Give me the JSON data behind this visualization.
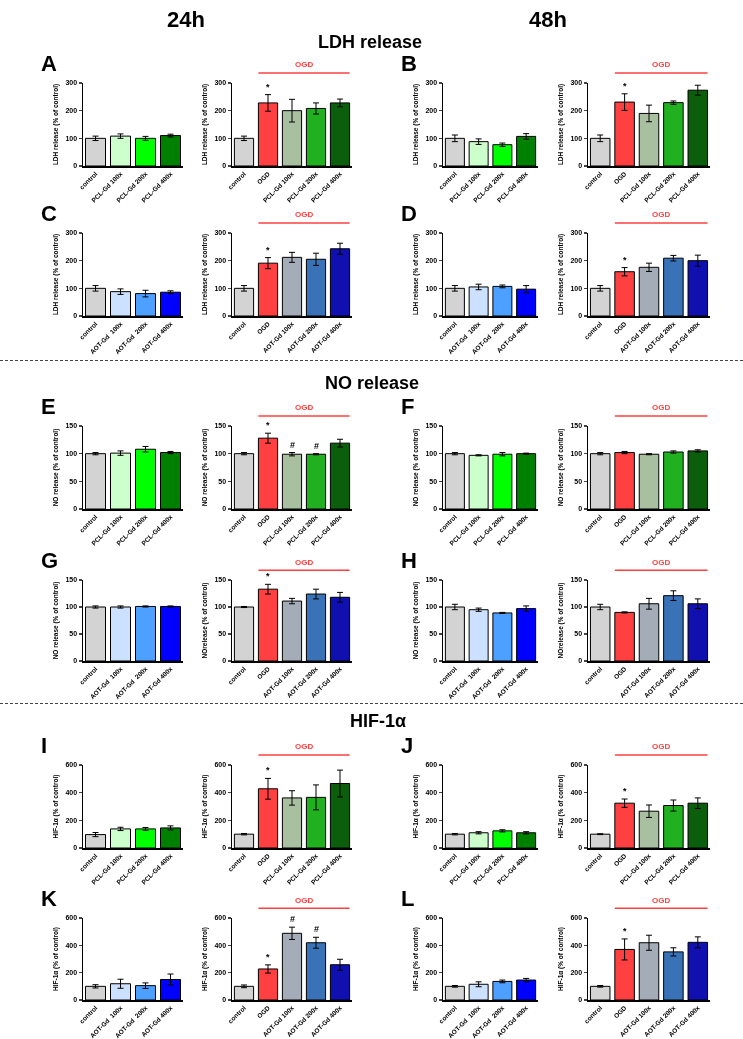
{
  "chart_data": [
    {
      "type": "bar",
      "title": "A",
      "annotations": [
        "24h",
        "LDH release"
      ],
      "ylabel": "LDH release (% of control)",
      "categories": [
        "control",
        "PCL-Gd 100x",
        "PCL-Gd 200x",
        "PCL-Gd 400x"
      ],
      "colors": [
        "#d3d3d3",
        "#ccffcc",
        "#00ff00",
        "#008000"
      ],
      "values": [
        100,
        108,
        100,
        110
      ],
      "errors": [
        8,
        8,
        7,
        5
      ],
      "ylim": [
        0,
        300
      ],
      "yticks": [
        0,
        100,
        200,
        300
      ]
    },
    {
      "type": "bar",
      "annotations": [
        "OGD"
      ],
      "ylabel": "LDH release (% of control)",
      "categories": [
        "control",
        "OGD",
        "PCL-Gd 100x",
        "PCL-Gd 200x",
        "PCL-Gd 400x"
      ],
      "colors": [
        "#d3d3d3",
        "#ff4040",
        "#a9c0a0",
        "#20b020",
        "#0b5e0b"
      ],
      "values": [
        100,
        228,
        200,
        208,
        228
      ],
      "errors": [
        8,
        30,
        41,
        20,
        14
      ],
      "value_labels": [
        null,
        "*",
        null,
        null,
        null
      ],
      "ylim": [
        0,
        300
      ],
      "yticks": [
        0,
        100,
        200,
        300
      ]
    },
    {
      "type": "bar",
      "title": "B",
      "annotations": [
        "48h"
      ],
      "ylabel": "LDH release (% of control)",
      "categories": [
        "control",
        "PCL-Gd 100x",
        "PCL-Gd 200x",
        "PCL-Gd 400x"
      ],
      "colors": [
        "#d3d3d3",
        "#ccffcc",
        "#00ff00",
        "#008000"
      ],
      "values": [
        100,
        88,
        77,
        107
      ],
      "errors": [
        12,
        10,
        6,
        10
      ],
      "ylim": [
        0,
        300
      ],
      "yticks": [
        0,
        100,
        200,
        300
      ]
    },
    {
      "type": "bar",
      "annotations": [
        "OGD"
      ],
      "ylabel": "LDH release (% of control)",
      "categories": [
        "control",
        "OGD",
        "PCL-Gd 100x",
        "PCL-Gd 200x",
        "PCL-Gd 400x"
      ],
      "colors": [
        "#d3d3d3",
        "#ff4040",
        "#a9c0a0",
        "#20b020",
        "#0b5e0b"
      ],
      "values": [
        100,
        231,
        190,
        229,
        274
      ],
      "errors": [
        12,
        30,
        30,
        6,
        18
      ],
      "value_labels": [
        null,
        "*",
        null,
        null,
        null
      ],
      "ylim": [
        0,
        300
      ],
      "yticks": [
        0,
        100,
        200,
        300
      ]
    },
    {
      "type": "bar",
      "title": "C",
      "ylabel": "LDH release (% of control)",
      "categories": [
        "control",
        "AOT-Gd  100x",
        "AOT-Gd  200x",
        "AOT-Gd 400x"
      ],
      "colors": [
        "#d3d3d3",
        "#cce0ff",
        "#4da0ff",
        "#0000ff"
      ],
      "values": [
        100,
        88,
        81,
        86
      ],
      "errors": [
        10,
        10,
        12,
        5
      ],
      "ylim": [
        0,
        300
      ],
      "yticks": [
        0,
        100,
        200,
        300
      ]
    },
    {
      "type": "bar",
      "annotations": [
        "OGD"
      ],
      "ylabel": "LDH release (% of control)",
      "categories": [
        "control",
        "OGD",
        "AOT-Gd 100x",
        "AOT-Gd 200x",
        "AOT-Gd 400x"
      ],
      "colors": [
        "#d3d3d3",
        "#ff4040",
        "#a4acb8",
        "#3a72b8",
        "#1010b0"
      ],
      "values": [
        100,
        191,
        212,
        205,
        243
      ],
      "errors": [
        10,
        20,
        18,
        22,
        20
      ],
      "value_labels": [
        null,
        "*",
        null,
        null,
        null
      ],
      "ylim": [
        0,
        300
      ],
      "yticks": [
        0,
        100,
        200,
        300
      ]
    },
    {
      "type": "bar",
      "title": "D",
      "ylabel": "LDH release (% of control)",
      "categories": [
        "control",
        "AOT-Gd  100x",
        "AOT-Gd  200x",
        "AOT-Gd 400x"
      ],
      "colors": [
        "#d3d3d3",
        "#cce0ff",
        "#4da0ff",
        "#0000ff"
      ],
      "values": [
        100,
        105,
        107,
        97
      ],
      "errors": [
        10,
        10,
        5,
        13
      ],
      "ylim": [
        0,
        300
      ],
      "yticks": [
        0,
        100,
        200,
        300
      ]
    },
    {
      "type": "bar",
      "annotations": [
        "OGD"
      ],
      "ylabel": "LDH release (% of control)",
      "categories": [
        "control",
        "OGD",
        "AOT-Gd 100x",
        "AOT-Gd 200x",
        "AOT-Gd 400x"
      ],
      "colors": [
        "#d3d3d3",
        "#ff4040",
        "#a4acb8",
        "#3a72b8",
        "#1010b0"
      ],
      "values": [
        100,
        160,
        176,
        209,
        200
      ],
      "errors": [
        10,
        15,
        15,
        10,
        20
      ],
      "value_labels": [
        null,
        "*",
        null,
        null,
        null
      ],
      "ylim": [
        0,
        300
      ],
      "yticks": [
        0,
        100,
        200,
        300
      ]
    },
    {
      "type": "bar",
      "title": "E",
      "annotations": [
        "NO release"
      ],
      "ylabel": "NO release (% of control)",
      "categories": [
        "control",
        "PCL-Gd 100x",
        "PCL-Gd 200x",
        "PCL-Gd 400x"
      ],
      "colors": [
        "#d3d3d3",
        "#ccffcc",
        "#00ff00",
        "#008000"
      ],
      "values": [
        100,
        101,
        108,
        102
      ],
      "errors": [
        2,
        4,
        5,
        2
      ],
      "ylim": [
        0,
        150
      ],
      "yticks": [
        0,
        50,
        100,
        150
      ]
    },
    {
      "type": "bar",
      "annotations": [
        "OGD"
      ],
      "ylabel": "NO release (% of control)",
      "categories": [
        "control",
        "OGD",
        "PCL-Gd 100x",
        "PCL-Gd 200x",
        "PCL-Gd 400x"
      ],
      "colors": [
        "#d3d3d3",
        "#ff4040",
        "#a9c0a0",
        "#20b020",
        "#0b5e0b"
      ],
      "values": [
        100,
        128,
        99,
        99,
        119
      ],
      "errors": [
        2,
        9,
        3,
        1,
        7
      ],
      "value_labels": [
        null,
        "*",
        "#",
        "#",
        null
      ],
      "ylim": [
        0,
        150
      ],
      "yticks": [
        0,
        50,
        100,
        150
      ]
    },
    {
      "type": "bar",
      "title": "F",
      "ylabel": "NO release (% of control)",
      "categories": [
        "control",
        "PCL-Gd 100x",
        "PCL-Gd 200x",
        "PCL-Gd 400x"
      ],
      "colors": [
        "#d3d3d3",
        "#ccffcc",
        "#00ff00",
        "#008000"
      ],
      "values": [
        100,
        97,
        99,
        100
      ],
      "errors": [
        2,
        1,
        3,
        1
      ],
      "ylim": [
        0,
        150
      ],
      "yticks": [
        0,
        50,
        100,
        150
      ]
    },
    {
      "type": "bar",
      "annotations": [
        "OGD"
      ],
      "ylabel": "NO release (% of control)",
      "categories": [
        "control",
        "OGD",
        "PCL-Gd 100x",
        "PCL-Gd 200x",
        "PCL-Gd 400x"
      ],
      "colors": [
        "#d3d3d3",
        "#ff4040",
        "#a9c0a0",
        "#20b020",
        "#0b5e0b"
      ],
      "values": [
        100,
        102,
        99,
        103,
        105
      ],
      "errors": [
        2,
        2,
        1,
        2,
        2
      ],
      "ylim": [
        0,
        150
      ],
      "yticks": [
        0,
        50,
        100,
        150
      ]
    },
    {
      "type": "bar",
      "title": "G",
      "ylabel": "NO release (% of control)",
      "categories": [
        "control",
        "AOT-Gd  100x",
        "AOT-Gd  200x",
        "AOT-Gd 400x"
      ],
      "colors": [
        "#d3d3d3",
        "#cce0ff",
        "#4da0ff",
        "#0000ff"
      ],
      "values": [
        100,
        100,
        101,
        101
      ],
      "errors": [
        2,
        2,
        1,
        1
      ],
      "ylim": [
        0,
        150
      ],
      "yticks": [
        0,
        50,
        100,
        150
      ]
    },
    {
      "type": "bar",
      "annotations": [
        "OGD"
      ],
      "ylabel": "NOrelease (% of control)",
      "categories": [
        "control",
        "OGD",
        "AOT-Gd 100x",
        "AOT-Gd 200x",
        "AOT-Gd 400x"
      ],
      "colors": [
        "#d3d3d3",
        "#ff4040",
        "#a4acb8",
        "#3a72b8",
        "#1010b0"
      ],
      "values": [
        100,
        133,
        111,
        124,
        118
      ],
      "errors": [
        1,
        9,
        5,
        9,
        9
      ],
      "value_labels": [
        null,
        "*",
        null,
        null,
        null
      ],
      "ylim": [
        0,
        150
      ],
      "yticks": [
        0,
        50,
        100,
        150
      ]
    },
    {
      "type": "bar",
      "title": "H",
      "ylabel": "NO release (% of control)",
      "categories": [
        "control",
        "AOT-Gd  100x",
        "AOT-Gd  200x",
        "AOT-Gd 400x"
      ],
      "colors": [
        "#d3d3d3",
        "#cce0ff",
        "#4da0ff",
        "#0000ff"
      ],
      "values": [
        100,
        95,
        89,
        97
      ],
      "errors": [
        5,
        3,
        1,
        5
      ],
      "ylim": [
        0,
        150
      ],
      "yticks": [
        0,
        50,
        100,
        150
      ]
    },
    {
      "type": "bar",
      "annotations": [
        "OGD"
      ],
      "ylabel": "NOrelease (% of control)",
      "categories": [
        "control",
        "OGD",
        "AOT-Gd 100x",
        "AOT-Gd 200x",
        "AOT-Gd 400x"
      ],
      "colors": [
        "#d3d3d3",
        "#ff4040",
        "#a4acb8",
        "#3a72b8",
        "#1010b0"
      ],
      "values": [
        100,
        90,
        106,
        121,
        106
      ],
      "errors": [
        5,
        1,
        10,
        9,
        9
      ],
      "ylim": [
        0,
        150
      ],
      "yticks": [
        0,
        50,
        100,
        150
      ]
    },
    {
      "type": "bar",
      "title": "I",
      "annotations": [
        "HIF-1α"
      ],
      "ylabel": "HIF-1α (% of control)",
      "categories": [
        "control",
        "PCL-Gd 100x",
        "PCL-Gd 200x",
        "PCL-Gd 400x"
      ],
      "colors": [
        "#d3d3d3",
        "#ccffcc",
        "#00ff00",
        "#008000"
      ],
      "values": [
        97,
        138,
        138,
        145
      ],
      "errors": [
        15,
        12,
        10,
        15
      ],
      "ylim": [
        0,
        600
      ],
      "yticks": [
        0,
        200,
        400,
        600
      ]
    },
    {
      "type": "bar",
      "annotations": [
        "OGD"
      ],
      "ylabel": "HIF-1α (% of control)",
      "categories": [
        "control",
        "OGD",
        "PCL-Gd 100x",
        "PCL-Gd 200x",
        "PCL-Gd 400x"
      ],
      "colors": [
        "#d3d3d3",
        "#ff4040",
        "#a9c0a0",
        "#20b020",
        "#0b5e0b"
      ],
      "values": [
        100,
        428,
        362,
        366,
        466
      ],
      "errors": [
        5,
        75,
        52,
        90,
        97
      ],
      "value_labels": [
        null,
        "*",
        null,
        null,
        null
      ],
      "ylim": [
        0,
        600
      ],
      "yticks": [
        0,
        200,
        400,
        600
      ]
    },
    {
      "type": "bar",
      "title": "J",
      "ylabel": "HIF-1α (% of control)",
      "categories": [
        "control",
        "PCL-Gd 100x",
        "PCL-Gd 200x",
        "PCL-Gd 400x"
      ],
      "colors": [
        "#d3d3d3",
        "#ccffcc",
        "#00ff00",
        "#008000"
      ],
      "values": [
        100,
        110,
        124,
        110
      ],
      "errors": [
        5,
        8,
        8,
        8
      ],
      "ylim": [
        0,
        600
      ],
      "yticks": [
        0,
        200,
        400,
        600
      ]
    },
    {
      "type": "bar",
      "annotations": [
        "OGD"
      ],
      "ylabel": "HIF-1α (% of control)",
      "categories": [
        "control",
        "OGD",
        "PCL-Gd 100x",
        "PCL-Gd 200x",
        "PCL-Gd 400x"
      ],
      "colors": [
        "#d3d3d3",
        "#ff4040",
        "#a9c0a0",
        "#20b020",
        "#0b5e0b"
      ],
      "values": [
        100,
        324,
        266,
        307,
        324
      ],
      "errors": [
        3,
        30,
        45,
        40,
        38
      ],
      "value_labels": [
        null,
        "*",
        null,
        null,
        null
      ],
      "ylim": [
        0,
        600
      ],
      "yticks": [
        0,
        200,
        400,
        600
      ]
    },
    {
      "type": "bar",
      "title": "K",
      "ylabel": "HIF-1α (% of control)",
      "categories": [
        "control",
        "AOT-Gd  100x",
        "AOT-Gd  200x",
        "AOT-Gd 400x"
      ],
      "colors": [
        "#d3d3d3",
        "#cce0ff",
        "#4da0ff",
        "#0000ff"
      ],
      "values": [
        100,
        119,
        105,
        150
      ],
      "errors": [
        12,
        33,
        20,
        40
      ],
      "ylim": [
        0,
        600
      ],
      "yticks": [
        0,
        200,
        400,
        600
      ]
    },
    {
      "type": "bar",
      "annotations": [
        "OGD"
      ],
      "ylabel": "HIF-1α (% of control)",
      "categories": [
        "control",
        "OGD",
        "AOT-Gd 100x",
        "AOT-Gd 200x",
        "AOT-Gd 400x"
      ],
      "colors": [
        "#d3d3d3",
        "#ff4040",
        "#a4acb8",
        "#3a72b8",
        "#1010b0"
      ],
      "values": [
        100,
        227,
        488,
        419,
        258
      ],
      "errors": [
        10,
        30,
        45,
        40,
        40
      ],
      "value_labels": [
        null,
        "*",
        "#",
        "#",
        null
      ],
      "ylim": [
        0,
        600
      ],
      "yticks": [
        0,
        200,
        400,
        600
      ]
    },
    {
      "type": "bar",
      "title": "L",
      "ylabel": "HIF-1α (% of control)",
      "categories": [
        "control",
        "AOT-Gd  100x",
        "AOT-Gd  200x",
        "AOT-Gd 400x"
      ],
      "colors": [
        "#d3d3d3",
        "#cce0ff",
        "#4da0ff",
        "#0000ff"
      ],
      "values": [
        100,
        115,
        136,
        146
      ],
      "errors": [
        6,
        18,
        10,
        12
      ],
      "ylim": [
        0,
        600
      ],
      "yticks": [
        0,
        200,
        400,
        600
      ]
    },
    {
      "type": "bar",
      "annotations": [
        "OGD"
      ],
      "ylabel": "HIF-1α (% of control)",
      "categories": [
        "control",
        "OGD",
        "AOT-Gd 100x",
        "AOT-Gd 200x",
        "AOT-Gd 400x"
      ],
      "colors": [
        "#d3d3d3",
        "#ff4040",
        "#a4acb8",
        "#3a72b8",
        "#1010b0"
      ],
      "values": [
        100,
        370,
        419,
        352,
        422
      ],
      "errors": [
        6,
        77,
        55,
        30,
        40
      ],
      "value_labels": [
        null,
        "*",
        null,
        null,
        null
      ],
      "ylim": [
        0,
        600
      ],
      "yticks": [
        0,
        200,
        400,
        600
      ]
    }
  ]
}
